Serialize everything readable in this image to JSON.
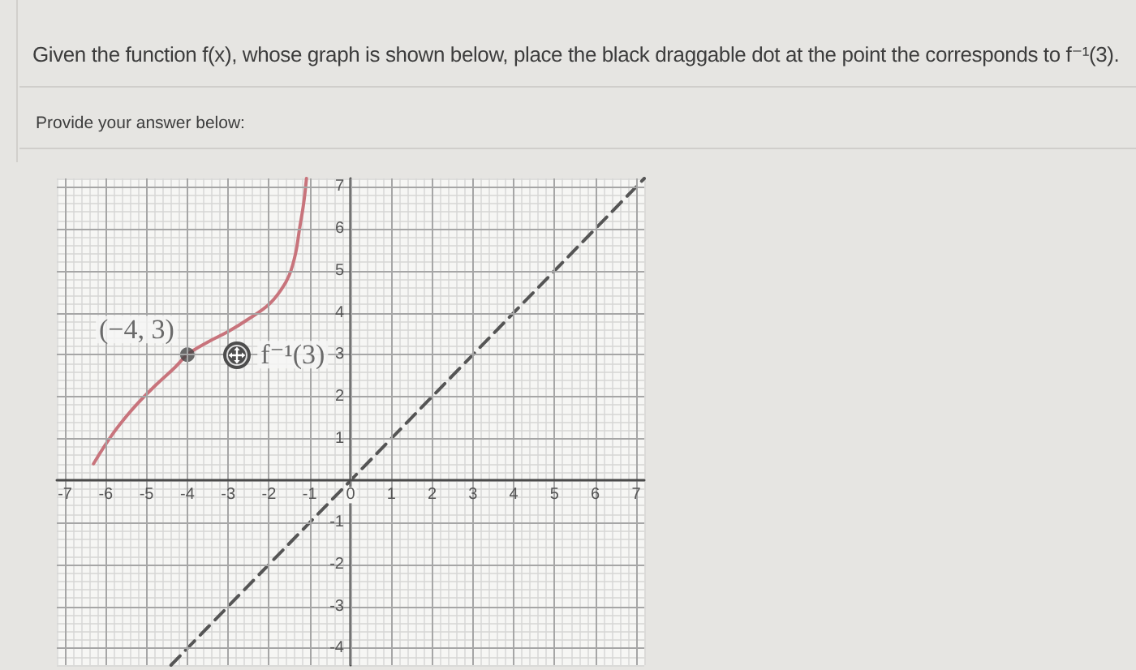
{
  "chart_data": {
    "type": "line",
    "title": "Given the function f(x), whose graph is shown below, place the black draggable dot at the point the corresponds to f⁻¹(3).",
    "subtitle": "Provide your answer below:",
    "series": [
      {
        "color": "#c8747c",
        "x": [
          -6.3,
          -5.8,
          -5.3,
          -4.8,
          -4.3,
          -4,
          -3.5,
          -3,
          -2.5,
          -2,
          -1.7,
          -1.5,
          -1.35,
          -1.25,
          -1.15,
          -1.08
        ],
        "values": [
          0.4,
          1.15,
          1.75,
          2.25,
          2.7,
          3,
          3.3,
          3.55,
          3.85,
          4.2,
          4.55,
          4.9,
          5.4,
          6,
          6.6,
          7.2
        ]
      },
      {
        "color": "#555555",
        "line_style": "dashed",
        "x": [
          -4.4,
          7.2
        ],
        "values": [
          -4.4,
          7.2
        ]
      },
      {
        "type": "scatter",
        "color": "#454545",
        "marker": "circle",
        "x": [
          -4
        ],
        "values": [
          3
        ]
      }
    ],
    "annotations": [
      {
        "text": "(−4, 3)",
        "x": -4,
        "y": 3
      },
      {
        "text": "f⁻¹(3)",
        "x": -2.8,
        "y": 3
      }
    ],
    "xlim": [
      -7.2,
      7.2
    ],
    "ylim": [
      -4.4,
      7.2
    ],
    "xticks": [
      -7,
      -6,
      -5,
      -4,
      -3,
      -2,
      -1,
      0,
      1,
      2,
      3,
      4,
      5,
      6,
      7
    ],
    "yticks": [
      -4,
      -3,
      -2,
      -1,
      1,
      2,
      3,
      4,
      5,
      6,
      7
    ],
    "grid": true
  }
}
